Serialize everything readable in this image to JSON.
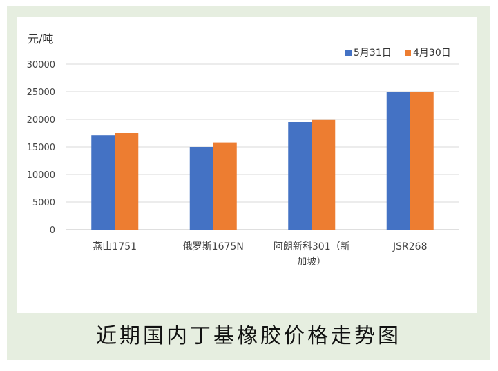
{
  "caption": "近期国内丁基橡胶价格走势图",
  "chart_data": {
    "type": "bar",
    "title": "",
    "xlabel": "",
    "ylabel": "元/吨",
    "ylim": [
      0,
      30000
    ],
    "yticks": [
      0,
      5000,
      10000,
      15000,
      20000,
      25000,
      30000
    ],
    "grid": true,
    "legend_position": "top-right",
    "categories": [
      [
        "燕山1751"
      ],
      [
        "俄罗斯1675N"
      ],
      [
        "阿朗新科301（新",
        "加坡）"
      ],
      [
        "JSR268"
      ]
    ],
    "series": [
      {
        "name": "5月31日",
        "color": "#4472c4",
        "values": [
          17100,
          15000,
          19500,
          25000
        ]
      },
      {
        "name": "4月30日",
        "color": "#ed7d31",
        "values": [
          17500,
          15800,
          19900,
          25000
        ]
      }
    ]
  }
}
